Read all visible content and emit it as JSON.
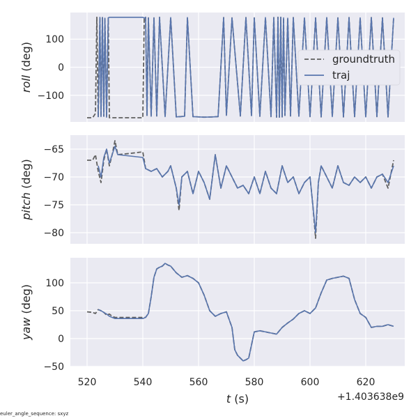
{
  "footer_text": "euler_angle_sequence: sxyz",
  "colors": {
    "background": "#eaeaf2",
    "grid": "#ffffff",
    "groundtruth": "#5f5f5f",
    "traj": "#5875ad"
  },
  "chart_data": [
    {
      "type": "line",
      "ylabel_italic": "roll",
      "ylabel_unit": " (deg)",
      "xlim": [
        514,
        634
      ],
      "ylim": [
        -195,
        195
      ],
      "yticks": [
        100,
        0,
        -100
      ],
      "ytick_labels": [
        "100",
        "0",
        "−100"
      ],
      "xticks": [
        520,
        540,
        560,
        580,
        600,
        620
      ],
      "grid": true,
      "legend": {
        "placement": "right",
        "entries": [
          "groundtruth",
          "traj"
        ]
      },
      "series": [
        {
          "name": "groundtruth",
          "style": "dashed",
          "x": [
            520,
            522,
            523,
            523.5,
            524,
            524.6,
            525,
            525.5,
            526,
            526.4,
            527,
            527.6,
            528,
            540,
            540.5,
            541,
            541.5,
            542,
            543,
            544,
            545,
            546,
            548,
            550,
            552,
            555,
            556,
            558,
            562,
            565,
            567,
            569,
            570,
            572,
            575,
            577,
            579,
            580,
            582,
            584,
            586,
            587,
            588,
            588.5,
            589,
            589.5,
            590,
            590.5,
            591,
            592,
            593,
            594,
            596,
            598,
            600,
            602,
            604,
            606,
            608,
            610,
            612,
            614,
            616,
            618,
            620,
            622,
            624,
            626,
            628,
            630
          ],
          "y": [
            -180,
            -180,
            -165,
            178,
            -178,
            178,
            -176,
            177,
            -175,
            175,
            -178,
            176,
            -180,
            -180,
            175,
            178,
            -172,
            176,
            -175,
            176,
            -174,
            178,
            -176,
            177,
            -177,
            -175,
            177,
            -176,
            -178,
            -177,
            -176,
            177,
            -172,
            176,
            -174,
            177,
            -173,
            176,
            -175,
            177,
            -176,
            177,
            -178,
            178,
            -178,
            178,
            -177,
            176,
            -172,
            175,
            -174,
            177,
            -175,
            176,
            -176,
            176,
            -177,
            177,
            -176,
            176,
            -177,
            177,
            -176,
            176,
            -177,
            177,
            -176,
            176,
            -177,
            176
          ]
        },
        {
          "name": "traj",
          "style": "solid",
          "x": [
            524,
            524.6,
            525,
            525.5,
            526,
            526.4,
            527,
            527.6,
            528,
            540,
            540.5,
            541,
            541.5,
            542,
            543,
            544,
            545,
            546,
            548,
            550,
            552,
            555,
            556,
            558,
            562,
            565,
            567,
            569,
            570,
            572,
            575,
            577,
            579,
            580,
            582,
            584,
            586,
            587,
            588,
            588.5,
            589,
            589.5,
            590,
            590.5,
            591,
            592,
            593,
            594,
            596,
            598,
            600,
            602,
            604,
            606,
            608,
            610,
            612,
            614,
            616,
            618,
            620,
            622,
            624,
            626,
            628,
            630
          ],
          "y": [
            -178,
            178,
            -176,
            177,
            -175,
            175,
            -178,
            176,
            178,
            178,
            175,
            178,
            -172,
            176,
            -175,
            176,
            -174,
            178,
            -176,
            177,
            -177,
            -175,
            177,
            -176,
            -178,
            -177,
            -176,
            177,
            -172,
            176,
            -174,
            177,
            -173,
            176,
            -175,
            177,
            -176,
            177,
            -178,
            178,
            -178,
            178,
            -177,
            176,
            -172,
            175,
            -174,
            177,
            -175,
            176,
            -176,
            176,
            -177,
            177,
            -176,
            176,
            -177,
            177,
            -176,
            176,
            -177,
            177,
            -176,
            176,
            -177,
            176
          ]
        }
      ]
    },
    {
      "type": "line",
      "ylabel_italic": "pitch",
      "ylabel_unit": " (deg)",
      "xlim": [
        514,
        634
      ],
      "ylim": [
        -82,
        -62.5
      ],
      "yticks": [
        -65,
        -70,
        -75,
        -80
      ],
      "ytick_labels": [
        "−65",
        "−70",
        "−75",
        "−80"
      ],
      "xticks": [
        520,
        540,
        560,
        580,
        600,
        620
      ],
      "grid": true,
      "series": [
        {
          "name": "groundtruth",
          "style": "dashed",
          "x": [
            520,
            522,
            523,
            524,
            525,
            526,
            527,
            528,
            529,
            530,
            531,
            535,
            540,
            541,
            543,
            545,
            547,
            549,
            550,
            552,
            553,
            554,
            556,
            558,
            560,
            562,
            564,
            566,
            568,
            570,
            572,
            574,
            576,
            578,
            580,
            582,
            584,
            586,
            588,
            590,
            592,
            594,
            596,
            598,
            600,
            601,
            602,
            603,
            604,
            606,
            608,
            610,
            612,
            614,
            616,
            618,
            620,
            622,
            624,
            626,
            628,
            630
          ],
          "y": [
            -67,
            -67,
            -66,
            -69,
            -71,
            -67,
            -65,
            -68,
            -66,
            -63.5,
            -66,
            -65.8,
            -65.5,
            -68.5,
            -69,
            -68.5,
            -70,
            -69,
            -68,
            -72,
            -76,
            -70,
            -69,
            -73,
            -69,
            -71,
            -74,
            -66,
            -72,
            -68,
            -70,
            -72,
            -71.5,
            -73,
            -70,
            -73,
            -69,
            -72,
            -73,
            -68,
            -71,
            -70,
            -73,
            -71,
            -70,
            -75,
            -81,
            -71,
            -68,
            -70,
            -72,
            -68,
            -71,
            -71.5,
            -70,
            -71,
            -70,
            -72,
            -70,
            -69.5,
            -72,
            -67
          ]
        },
        {
          "name": "traj",
          "style": "solid",
          "x": [
            524,
            525,
            526,
            527,
            528,
            529,
            530,
            531,
            540,
            541,
            543,
            545,
            547,
            549,
            550,
            552,
            553,
            554,
            556,
            558,
            560,
            562,
            564,
            566,
            568,
            570,
            572,
            574,
            576,
            578,
            580,
            582,
            584,
            586,
            588,
            590,
            592,
            594,
            596,
            598,
            600,
            601,
            602,
            603,
            604,
            606,
            608,
            610,
            612,
            614,
            616,
            618,
            620,
            622,
            624,
            626,
            628,
            630
          ],
          "y": [
            -68,
            -70,
            -66.5,
            -65,
            -67.5,
            -66,
            -64.5,
            -66,
            -66.5,
            -68.5,
            -69,
            -68.5,
            -70,
            -69,
            -68,
            -72,
            -75,
            -70,
            -69,
            -73,
            -69,
            -71,
            -74,
            -66,
            -72,
            -68,
            -70,
            -72,
            -71.5,
            -73,
            -70,
            -73,
            -69,
            -72,
            -73,
            -68,
            -71,
            -70,
            -73,
            -71,
            -70,
            -75,
            -80,
            -71,
            -68,
            -70,
            -72,
            -68,
            -71,
            -71.5,
            -70,
            -71,
            -70,
            -72,
            -70,
            -69.5,
            -71,
            -68
          ]
        }
      ]
    },
    {
      "type": "line",
      "ylabel_italic": "yaw",
      "ylabel_unit": " (deg)",
      "xlim": [
        514,
        634
      ],
      "ylim": [
        -50,
        145
      ],
      "yticks": [
        100,
        50,
        0,
        -50
      ],
      "ytick_labels": [
        "100",
        "50",
        "0",
        "−50"
      ],
      "xticks": [
        520,
        540,
        560,
        580,
        600,
        620
      ],
      "xtick_labels": [
        "520",
        "540",
        "560",
        "580",
        "600",
        "620"
      ],
      "xlabel_italic": "t",
      "xlabel_unit": " (s)",
      "offset_text": "+1.403638e9",
      "grid": true,
      "series": [
        {
          "name": "groundtruth",
          "style": "dashed",
          "x": [
            520,
            522,
            523,
            524,
            525,
            526,
            527,
            528,
            529,
            530,
            535,
            540,
            541,
            542,
            543,
            544,
            545,
            546,
            547,
            548,
            549,
            550,
            552,
            554,
            556,
            558,
            560,
            562,
            564,
            566,
            568,
            570,
            572,
            573,
            574,
            575,
            576,
            577,
            578,
            580,
            582,
            584,
            586,
            588,
            590,
            592,
            594,
            596,
            598,
            600,
            602,
            604,
            606,
            608,
            610,
            612,
            614,
            616,
            618,
            620,
            622,
            624,
            626,
            628,
            630
          ],
          "y": [
            48,
            47,
            45,
            52,
            50,
            47,
            42,
            44,
            40,
            38,
            38,
            38,
            38,
            45,
            75,
            110,
            125,
            128,
            130,
            135,
            132,
            130,
            118,
            110,
            113,
            108,
            100,
            78,
            50,
            40,
            45,
            48,
            20,
            -20,
            -30,
            -35,
            -40,
            -38,
            -35,
            12,
            14,
            12,
            10,
            8,
            20,
            28,
            35,
            45,
            50,
            45,
            55,
            82,
            105,
            108,
            110,
            112,
            108,
            70,
            45,
            38,
            20,
            22,
            22,
            25,
            22
          ]
        },
        {
          "name": "traj",
          "style": "solid",
          "x": [
            524,
            525,
            526,
            527,
            528,
            529,
            530,
            535,
            540,
            541,
            542,
            543,
            544,
            545,
            546,
            547,
            548,
            549,
            550,
            552,
            554,
            556,
            558,
            560,
            562,
            564,
            566,
            568,
            570,
            572,
            573,
            574,
            575,
            576,
            577,
            578,
            580,
            582,
            584,
            586,
            588,
            590,
            592,
            594,
            596,
            598,
            600,
            602,
            604,
            606,
            608,
            610,
            612,
            614,
            616,
            618,
            620,
            622,
            624,
            626,
            628,
            630
          ],
          "y": [
            52,
            50,
            47,
            44,
            40,
            38,
            36,
            36,
            36,
            38,
            45,
            75,
            110,
            125,
            128,
            130,
            135,
            132,
            130,
            118,
            110,
            113,
            108,
            100,
            78,
            50,
            40,
            45,
            48,
            20,
            -20,
            -30,
            -35,
            -40,
            -38,
            -35,
            12,
            14,
            12,
            10,
            8,
            20,
            28,
            35,
            45,
            50,
            45,
            55,
            82,
            105,
            108,
            110,
            112,
            108,
            70,
            45,
            38,
            20,
            22,
            22,
            25,
            22
          ]
        }
      ]
    }
  ]
}
